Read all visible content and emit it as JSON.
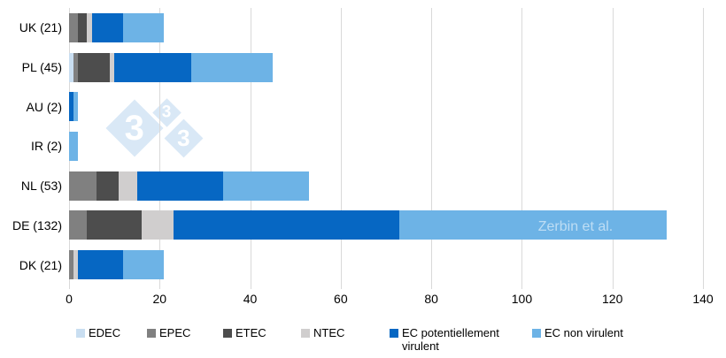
{
  "chart_data": {
    "type": "bar",
    "orientation": "horizontal",
    "title": "",
    "xlabel": "",
    "ylabel": "",
    "xlim": [
      0,
      140
    ],
    "x_ticks": [
      0,
      20,
      40,
      60,
      80,
      100,
      120,
      140
    ],
    "grid": "vertical",
    "legend_position": "bottom",
    "categories": [
      "UK (21)",
      "PL (45)",
      "AU (2)",
      "IR (2)",
      "NL (53)",
      "DE (132)",
      "DK (21)"
    ],
    "series": [
      {
        "name": "EDEC",
        "color": "#c9def1",
        "values": [
          0,
          1,
          0,
          0,
          0,
          0,
          0
        ]
      },
      {
        "name": "EPEC",
        "color": "#808080",
        "values": [
          2,
          1,
          0,
          0,
          6,
          4,
          1
        ]
      },
      {
        "name": "ETEC",
        "color": "#4d4d4d",
        "values": [
          2,
          7,
          0,
          0,
          5,
          12,
          0
        ]
      },
      {
        "name": "NTEC",
        "color": "#d0cece",
        "values": [
          1,
          1,
          0,
          0,
          4,
          7,
          1
        ]
      },
      {
        "name": "EC potentiellement virulent",
        "color": "#0667c3",
        "values": [
          7,
          17,
          1,
          0,
          19,
          50,
          10
        ]
      },
      {
        "name": "EC non virulent",
        "color": "#6db3e6",
        "values": [
          9,
          18,
          1,
          2,
          19,
          59,
          9
        ]
      }
    ],
    "totals": [
      21,
      45,
      2,
      2,
      53,
      132,
      21
    ]
  },
  "legend": {
    "items": [
      "EDEC",
      "EPEC",
      "ETEC",
      "NTEC",
      "EC potentiellement virulent",
      "EC non virulent"
    ]
  },
  "watermark": {
    "annotation": "Zerbin et al.",
    "logo_digits": [
      "3",
      "3",
      "3"
    ]
  },
  "colors": {
    "gridline": "#d9d9d9",
    "watermark_blue": "#d9e8f6",
    "text": "#000000"
  }
}
